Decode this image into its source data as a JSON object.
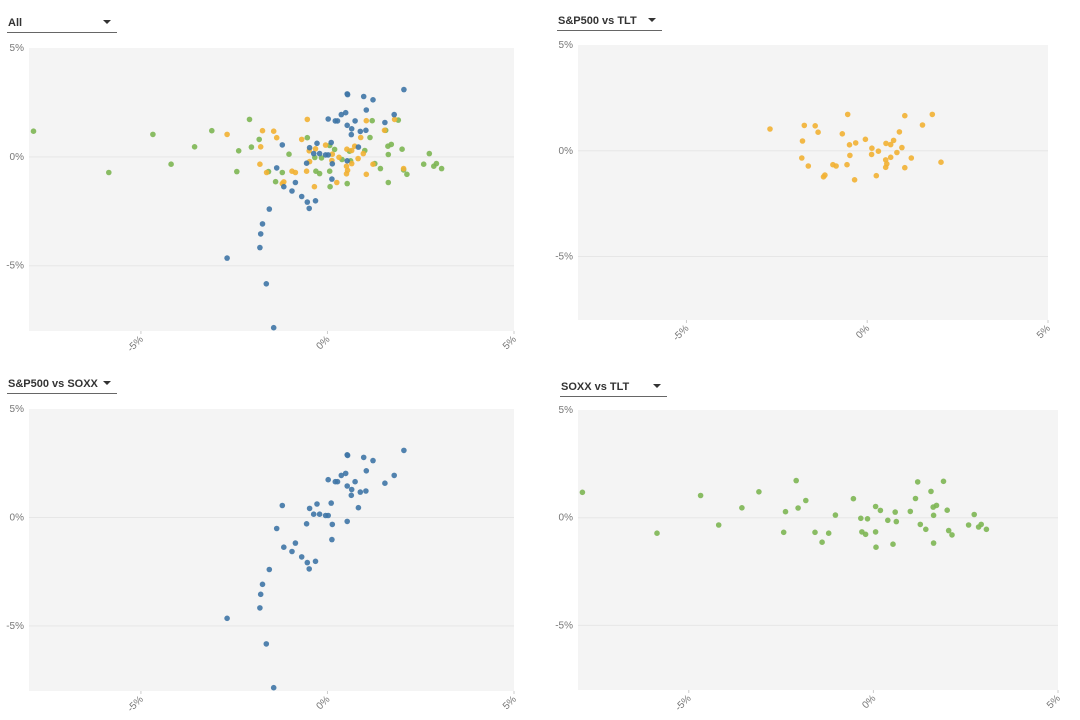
{
  "colors": {
    "S&P500 vs SOXX": "#3f76a6",
    "S&P500 vs TLT": "#f2b133",
    "SOXX vs TLT": "#7db653",
    "plot_bg": "#f4f4f4"
  },
  "panels": [
    {
      "selector": "All"
    },
    {
      "selector": "S&P500 vs TLT"
    },
    {
      "selector": "S&P500 vs SOXX"
    },
    {
      "selector": "SOXX vs TLT"
    }
  ],
  "chart_data": [
    {
      "type": "scatter",
      "title": "All",
      "series_shown": [
        "SOXX vs TLT",
        "S&P500 vs TLT",
        "S&P500 vs SOXX"
      ],
      "xlim": [
        -8,
        5
      ],
      "ylim": [
        -8,
        5
      ],
      "xticks": [
        "-5%",
        "0%",
        "5%"
      ],
      "yticks": [
        "5%",
        "0%",
        "-5%"
      ]
    },
    {
      "type": "scatter",
      "title": "S&P500 vs TLT",
      "series_shown": [
        "S&P500 vs TLT"
      ],
      "xlim": [
        -8,
        5
      ],
      "ylim": [
        -8,
        5
      ],
      "xticks": [
        "-5%",
        "0%",
        "5%"
      ],
      "yticks": [
        "5%",
        "0%",
        "-5%"
      ]
    },
    {
      "type": "scatter",
      "title": "S&P500 vs SOXX",
      "series_shown": [
        "S&P500 vs SOXX"
      ],
      "xlim": [
        -8,
        5
      ],
      "ylim": [
        -8,
        5
      ],
      "xticks": [
        "-5%",
        "0%",
        "5%"
      ],
      "yticks": [
        "5%",
        "0%",
        "-5%"
      ]
    },
    {
      "type": "scatter",
      "title": "SOXX vs TLT",
      "series_shown": [
        "SOXX vs TLT"
      ],
      "xlim": [
        -8,
        5
      ],
      "ylim": [
        -8,
        5
      ],
      "xticks": [
        "-5%",
        "0%",
        "5%"
      ],
      "yticks": [
        "5%",
        "0%",
        "-5%"
      ]
    }
  ],
  "series": {
    "S&P500 vs SOXX": [
      [
        0.53,
        2.89
      ],
      [
        0.54,
        2.86
      ],
      [
        0.97,
        2.77
      ],
      [
        1.22,
        2.62
      ],
      [
        2.05,
        3.09
      ],
      [
        1.04,
        2.15
      ],
      [
        0.49,
        2.03
      ],
      [
        0.37,
        1.94
      ],
      [
        1.79,
        1.94
      ],
      [
        0.02,
        1.74
      ],
      [
        0.21,
        1.65
      ],
      [
        0.27,
        1.65
      ],
      [
        0.74,
        1.65
      ],
      [
        1.54,
        1.58
      ],
      [
        0.53,
        1.45
      ],
      [
        0.65,
        1.29
      ],
      [
        0.88,
        1.17
      ],
      [
        1.03,
        1.22
      ],
      [
        0.64,
        1.02
      ],
      [
        -1.21,
        0.55
      ],
      [
        -0.28,
        0.62
      ],
      [
        0.1,
        0.66
      ],
      [
        0.83,
        0.45
      ],
      [
        -0.48,
        0.42
      ],
      [
        -0.37,
        0.15
      ],
      [
        -0.21,
        0.15
      ],
      [
        -0.05,
        0.09
      ],
      [
        0.02,
        0.09
      ],
      [
        -0.56,
        -0.29
      ],
      [
        0.13,
        -0.32
      ],
      [
        0.53,
        -0.18
      ],
      [
        -1.36,
        -0.51
      ],
      [
        0.12,
        -1.02
      ],
      [
        -0.86,
        -1.18
      ],
      [
        -1.17,
        -1.37
      ],
      [
        -0.95,
        -1.57
      ],
      [
        -0.69,
        -1.82
      ],
      [
        -0.54,
        -2.08
      ],
      [
        -0.32,
        -2.02
      ],
      [
        -0.49,
        -2.37
      ],
      [
        -1.56,
        -2.4
      ],
      [
        -1.74,
        -3.08
      ],
      [
        -1.79,
        -3.54
      ],
      [
        -1.81,
        -4.17
      ],
      [
        -2.69,
        -4.65
      ],
      [
        -1.64,
        -5.83
      ],
      [
        -1.44,
        -7.85
      ]
    ],
    "S&P500 vs TLT": [
      [
        -0.54,
        1.72
      ],
      [
        1.04,
        1.66
      ],
      [
        1.8,
        1.72
      ],
      [
        -1.74,
        1.2
      ],
      [
        -1.44,
        1.18
      ],
      [
        -2.69,
        1.03
      ],
      [
        -1.36,
        0.88
      ],
      [
        -0.69,
        0.8
      ],
      [
        0.89,
        0.89
      ],
      [
        1.53,
        1.22
      ],
      [
        -1.79,
        0.46
      ],
      [
        -0.05,
        0.54
      ],
      [
        0.73,
        0.49
      ],
      [
        -0.49,
        0.28
      ],
      [
        -0.32,
        0.37
      ],
      [
        0.13,
        0.12
      ],
      [
        0.52,
        0.35
      ],
      [
        0.65,
        0.29
      ],
      [
        0.96,
        0.15
      ],
      [
        0.31,
        -0.02
      ],
      [
        0.82,
        -0.08
      ],
      [
        -1.81,
        -0.34
      ],
      [
        -1.63,
        -0.72
      ],
      [
        -0.95,
        -0.66
      ],
      [
        -0.86,
        -0.72
      ],
      [
        -0.56,
        -0.66
      ],
      [
        -0.48,
        -0.22
      ],
      [
        0.51,
        -0.43
      ],
      [
        0.65,
        -0.31
      ],
      [
        1.22,
        -0.34
      ],
      [
        2.04,
        -0.54
      ],
      [
        0.51,
        -0.78
      ],
      [
        1.04,
        -0.8
      ],
      [
        -1.21,
        -1.23
      ],
      [
        -1.17,
        -1.15
      ],
      [
        -0.35,
        -1.37
      ],
      [
        0.25,
        -1.18
      ],
      [
        0.12,
        -0.17
      ],
      [
        0.54,
        -0.62
      ]
    ],
    "SOXX vs TLT": [
      [
        -7.88,
        1.18
      ],
      [
        -4.68,
        1.03
      ],
      [
        -5.86,
        -0.72
      ],
      [
        -4.19,
        -0.34
      ],
      [
        -3.56,
        0.46
      ],
      [
        -3.1,
        1.2
      ],
      [
        -2.09,
        1.72
      ],
      [
        -2.38,
        0.28
      ],
      [
        -2.04,
        0.45
      ],
      [
        -1.83,
        0.8
      ],
      [
        -2.43,
        -0.68
      ],
      [
        -1.58,
        -0.68
      ],
      [
        -1.21,
        -0.72
      ],
      [
        -1.39,
        -1.14
      ],
      [
        -1.03,
        0.12
      ],
      [
        -0.54,
        0.88
      ],
      [
        -0.34,
        -0.03
      ],
      [
        -0.16,
        -0.05
      ],
      [
        -0.31,
        -0.66
      ],
      [
        -0.21,
        -0.77
      ],
      [
        0.06,
        -0.66
      ],
      [
        0.07,
        -1.37
      ],
      [
        0.06,
        0.52
      ],
      [
        0.19,
        0.34
      ],
      [
        0.39,
        -0.12
      ],
      [
        0.59,
        0.26
      ],
      [
        0.62,
        -0.18
      ],
      [
        0.53,
        -1.23
      ],
      [
        1.0,
        0.29
      ],
      [
        1.14,
        0.89
      ],
      [
        1.2,
        1.66
      ],
      [
        1.27,
        -0.31
      ],
      [
        1.42,
        -0.54
      ],
      [
        1.56,
        1.22
      ],
      [
        1.62,
        0.49
      ],
      [
        1.71,
        0.57
      ],
      [
        1.63,
        0.11
      ],
      [
        1.63,
        -1.18
      ],
      [
        1.9,
        1.69
      ],
      [
        2.0,
        0.35
      ],
      [
        2.04,
        -0.6
      ],
      [
        2.13,
        -0.8
      ],
      [
        2.58,
        -0.34
      ],
      [
        2.73,
        0.15
      ],
      [
        2.85,
        -0.43
      ],
      [
        2.92,
        -0.31
      ],
      [
        3.06,
        -0.54
      ]
    ]
  }
}
